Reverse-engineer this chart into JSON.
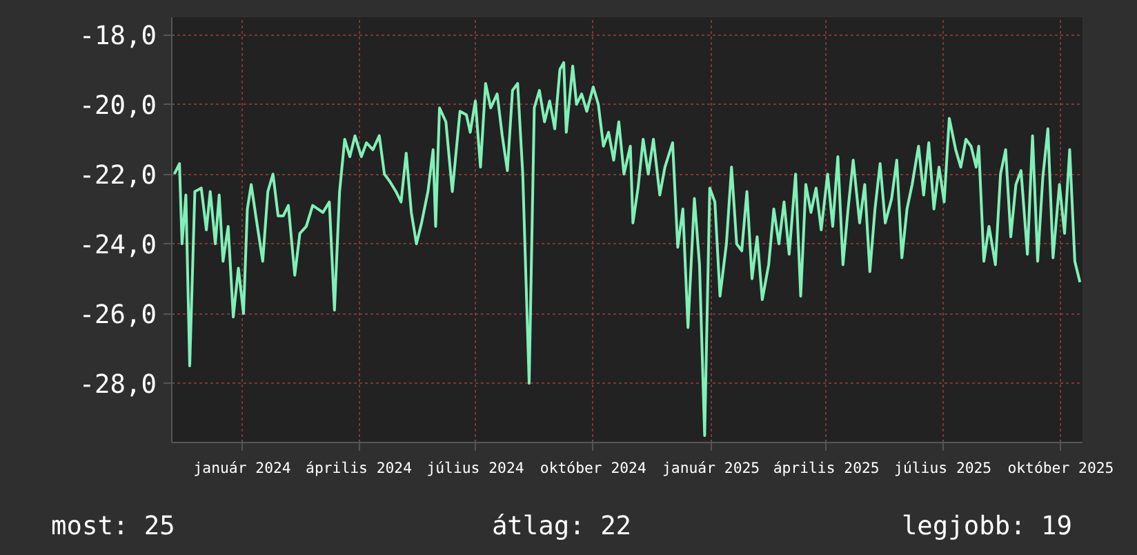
{
  "chart_data": {
    "type": "line",
    "color": "#80f0b8",
    "x": [
      "2023-11-09",
      "2023-11-13",
      "2023-11-15",
      "2023-11-18",
      "2023-11-21",
      "2023-11-25",
      "2023-11-30",
      "2023-12-04",
      "2023-12-07",
      "2023-12-11",
      "2023-12-14",
      "2023-12-17",
      "2023-12-21",
      "2023-12-25",
      "2023-12-29",
      "2024-01-02",
      "2024-01-05",
      "2024-01-08",
      "2024-01-12",
      "2024-01-17",
      "2024-01-21",
      "2024-01-25",
      "2024-01-29",
      "2024-02-02",
      "2024-02-06",
      "2024-02-11",
      "2024-02-15",
      "2024-02-20",
      "2024-02-25",
      "2024-02-29",
      "2024-03-04",
      "2024-03-09",
      "2024-03-13",
      "2024-03-17",
      "2024-03-21",
      "2024-03-25",
      "2024-03-29",
      "2024-04-03",
      "2024-04-07",
      "2024-04-12",
      "2024-04-17",
      "2024-04-21",
      "2024-04-25",
      "2024-04-30",
      "2024-05-04",
      "2024-05-08",
      "2024-05-12",
      "2024-05-16",
      "2024-05-20",
      "2024-05-25",
      "2024-05-29",
      "2024-05-31",
      "2024-06-03",
      "2024-06-08",
      "2024-06-13",
      "2024-06-19",
      "2024-06-24",
      "2024-06-27",
      "2024-07-01",
      "2024-07-05",
      "2024-07-09",
      "2024-07-13",
      "2024-07-18",
      "2024-07-22",
      "2024-07-26",
      "2024-07-30",
      "2024-08-03",
      "2024-08-07",
      "2024-08-12",
      "2024-08-16",
      "2024-08-20",
      "2024-08-24",
      "2024-08-28",
      "2024-09-01",
      "2024-09-05",
      "2024-09-08",
      "2024-09-10",
      "2024-09-15",
      "2024-09-18",
      "2024-09-22",
      "2024-09-26",
      "2024-10-01",
      "2024-10-05",
      "2024-10-09",
      "2024-10-13",
      "2024-10-17",
      "2024-10-21",
      "2024-10-25",
      "2024-10-30",
      "2024-11-01",
      "2024-11-05",
      "2024-11-09",
      "2024-11-13",
      "2024-11-17",
      "2024-11-22",
      "2024-11-26",
      "2024-12-02",
      "2024-12-06",
      "2024-12-10",
      "2024-12-14",
      "2024-12-19",
      "2024-12-23",
      "2024-12-27",
      "2024-12-31",
      "2025-01-04",
      "2025-01-08",
      "2025-01-13",
      "2025-01-17",
      "2025-01-21",
      "2025-01-25",
      "2025-01-29",
      "2025-02-02",
      "2025-02-06",
      "2025-02-10",
      "2025-02-15",
      "2025-02-19",
      "2025-02-23",
      "2025-02-27",
      "2025-03-03",
      "2025-03-08",
      "2025-03-12",
      "2025-03-16",
      "2025-03-20",
      "2025-03-24",
      "2025-03-28",
      "2025-04-02",
      "2025-04-06",
      "2025-04-10",
      "2025-04-14",
      "2025-04-18",
      "2025-04-22",
      "2025-04-27",
      "2025-05-01",
      "2025-05-05",
      "2025-05-09",
      "2025-05-13",
      "2025-05-17",
      "2025-05-22",
      "2025-05-26",
      "2025-05-30",
      "2025-06-03",
      "2025-06-07",
      "2025-06-12",
      "2025-06-16",
      "2025-06-20",
      "2025-06-24",
      "2025-06-28",
      "2025-07-02",
      "2025-07-06",
      "2025-07-11",
      "2025-07-15",
      "2025-07-19",
      "2025-07-23",
      "2025-07-27",
      "2025-07-29",
      "2025-08-02",
      "2025-08-06",
      "2025-08-11",
      "2025-08-15",
      "2025-08-19",
      "2025-08-23",
      "2025-08-27",
      "2025-08-31",
      "2025-09-05",
      "2025-09-09",
      "2025-09-13",
      "2025-09-17",
      "2025-09-21",
      "2025-09-25",
      "2025-09-30",
      "2025-10-04",
      "2025-10-08",
      "2025-10-12",
      "2025-10-16"
    ],
    "values": [
      -22.0,
      -21.7,
      -24.0,
      -22.6,
      -27.5,
      -22.5,
      -22.4,
      -23.6,
      -22.5,
      -24.0,
      -22.6,
      -24.5,
      -23.5,
      -26.1,
      -24.7,
      -26.0,
      -23.0,
      -22.3,
      -23.3,
      -24.5,
      -22.5,
      -22.0,
      -23.2,
      -23.2,
      -22.9,
      -24.9,
      -23.7,
      -23.5,
      -22.9,
      -23.0,
      -23.1,
      -22.8,
      -25.9,
      -22.5,
      -21.0,
      -21.5,
      -20.9,
      -21.5,
      -21.1,
      -21.3,
      -20.9,
      -22.0,
      -22.2,
      -22.5,
      -22.8,
      -21.4,
      -23.1,
      -24.0,
      -23.4,
      -22.5,
      -21.3,
      -23.5,
      -20.1,
      -20.5,
      -22.5,
      -20.2,
      -20.3,
      -20.8,
      -19.9,
      -21.8,
      -19.4,
      -20.1,
      -19.7,
      -20.9,
      -21.9,
      -19.6,
      -19.4,
      -22.0,
      -28.0,
      -20.1,
      -19.6,
      -20.5,
      -19.9,
      -20.7,
      -19.0,
      -18.8,
      -20.8,
      -18.9,
      -20.0,
      -19.7,
      -20.2,
      -19.5,
      -20.0,
      -21.2,
      -20.8,
      -21.6,
      -20.5,
      -22.0,
      -21.2,
      -23.4,
      -22.4,
      -21.0,
      -22.0,
      -21.0,
      -22.6,
      -21.8,
      -21.1,
      -24.1,
      -23.0,
      -26.4,
      -22.7,
      -24.6,
      -29.5,
      -22.4,
      -22.8,
      -25.5,
      -24.0,
      -21.8,
      -24.0,
      -24.2,
      -22.5,
      -25.0,
      -23.8,
      -25.6,
      -24.6,
      -23.0,
      -24.0,
      -22.8,
      -24.3,
      -22.0,
      -25.5,
      -22.3,
      -23.1,
      -22.4,
      -23.6,
      -22.0,
      -23.5,
      -21.5,
      -24.6,
      -23.0,
      -21.6,
      -23.4,
      -22.3,
      -24.8,
      -23.0,
      -21.7,
      -23.4,
      -22.7,
      -21.6,
      -24.4,
      -23.0,
      -22.3,
      -21.2,
      -22.6,
      -21.1,
      -23.0,
      -21.8,
      -22.8,
      -20.4,
      -21.3,
      -21.8,
      -21.0,
      -21.2,
      -21.8,
      -21.2,
      -24.5,
      -23.5,
      -24.6,
      -22.0,
      -21.3,
      -23.8,
      -22.3,
      -21.9,
      -24.3,
      -20.9,
      -24.5,
      -22.1,
      -20.7,
      -24.4,
      -22.3,
      -23.7,
      -21.3,
      -24.5,
      -25.1
    ],
    "xlim": [
      "2023-11-07",
      "2025-10-18"
    ],
    "xticks": [
      {
        "value": "2024-01-01",
        "label": "január 2024"
      },
      {
        "value": "2024-04-01",
        "label": "április 2024"
      },
      {
        "value": "2024-07-01",
        "label": "július 2024"
      },
      {
        "value": "2024-10-01",
        "label": "október 2024"
      },
      {
        "value": "2025-01-01",
        "label": "január 2025"
      },
      {
        "value": "2025-04-01",
        "label": "április 2025"
      },
      {
        "value": "2025-07-01",
        "label": "július 2025"
      },
      {
        "value": "2025-10-01",
        "label": "október 2025"
      }
    ],
    "ylim": [
      -29.7,
      -17.5
    ],
    "yticks": [
      {
        "value": -18,
        "label": "-18,0"
      },
      {
        "value": -20,
        "label": "-20,0"
      },
      {
        "value": -22,
        "label": "-22,0"
      },
      {
        "value": -24,
        "label": "-24,0"
      },
      {
        "value": -26,
        "label": "-26,0"
      },
      {
        "value": -28,
        "label": "-28,0"
      }
    ],
    "grid": true,
    "annotations": [
      "most: 25",
      "átlag: 22",
      "legjobb: 19"
    ]
  }
}
